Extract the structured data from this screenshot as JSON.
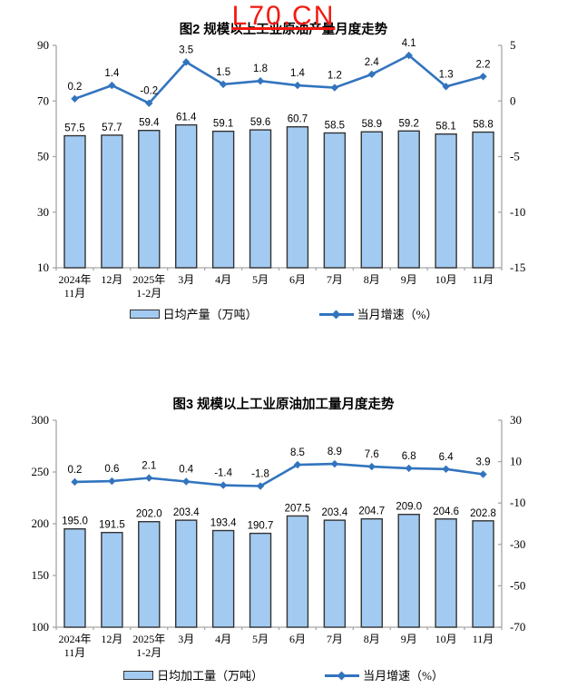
{
  "watermark": {
    "text": "L70.CN",
    "color": "#f3190f"
  },
  "style": {
    "bar_fill": "#a3cbf2",
    "bar_border": "#333333",
    "line_color": "#3274be",
    "axis_color": "#a6a6a6",
    "label_color": "#000000"
  },
  "chart_data": [
    {
      "type": "bar",
      "title": "图2 规模以上工业原油产量月度走势",
      "legend_position": "bottom",
      "grid": false,
      "categories": [
        [
          "2024年",
          "11月"
        ],
        [
          "12月"
        ],
        [
          "2025年",
          "1-2月"
        ],
        [
          "3月"
        ],
        [
          "4月"
        ],
        [
          "5月"
        ],
        [
          "6月"
        ],
        [
          "7月"
        ],
        [
          "8月"
        ],
        [
          "9月"
        ],
        [
          "10月"
        ],
        [
          "11月"
        ]
      ],
      "series": [
        {
          "name": "日均产量（万吨）",
          "type": "bar",
          "axis": "left",
          "values": [
            57.5,
            57.7,
            59.4,
            61.4,
            59.1,
            59.6,
            60.7,
            58.5,
            58.9,
            59.2,
            58.1,
            58.8
          ]
        },
        {
          "name": "当月增速（%）",
          "type": "line",
          "axis": "right",
          "values": [
            0.2,
            1.4,
            -0.2,
            3.5,
            1.5,
            1.8,
            1.4,
            1.2,
            2.4,
            4.1,
            1.3,
            2.2
          ]
        }
      ],
      "left_axis": {
        "min": 10,
        "max": 90,
        "ticks": [
          10,
          30,
          50,
          70,
          90
        ]
      },
      "right_axis": {
        "min": -15,
        "max": 5,
        "ticks": [
          -15,
          -10,
          -5,
          0,
          5
        ]
      }
    },
    {
      "type": "bar",
      "title": "图3 规模以上工业原油加工量月度走势",
      "legend_position": "bottom",
      "grid": false,
      "categories": [
        [
          "2024年",
          "11月"
        ],
        [
          "12月"
        ],
        [
          "2025年",
          "1-2月"
        ],
        [
          "3月"
        ],
        [
          "4月"
        ],
        [
          "5月"
        ],
        [
          "6月"
        ],
        [
          "7月"
        ],
        [
          "8月"
        ],
        [
          "9月"
        ],
        [
          "10月"
        ],
        [
          "11月"
        ]
      ],
      "series": [
        {
          "name": "日均加工量（万吨）",
          "type": "bar",
          "axis": "left",
          "values": [
            195.0,
            191.5,
            202.0,
            203.4,
            193.4,
            190.7,
            207.5,
            203.4,
            204.7,
            209.0,
            204.6,
            202.8
          ]
        },
        {
          "name": "当月增速（%）",
          "type": "line",
          "axis": "right",
          "values": [
            0.2,
            0.6,
            2.1,
            0.4,
            -1.4,
            -1.8,
            8.5,
            8.9,
            7.6,
            6.8,
            6.4,
            3.9
          ]
        }
      ],
      "left_axis": {
        "min": 100,
        "max": 300,
        "ticks": [
          100,
          150,
          200,
          250,
          300
        ]
      },
      "right_axis": {
        "min": -70,
        "max": 30,
        "ticks": [
          -70,
          -50,
          -30,
          -10,
          10,
          30
        ]
      }
    }
  ]
}
